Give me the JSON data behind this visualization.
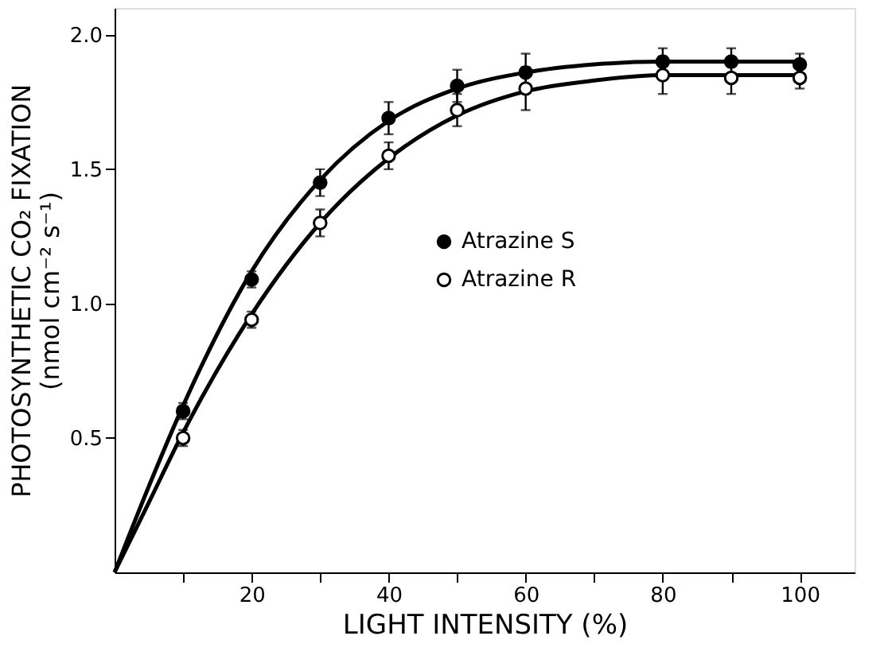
{
  "chart_data": {
    "type": "scatter",
    "xlabel": "LIGHT INTENSITY (%)",
    "ylabel": "PHOTOSYNTHETIC CO₂ FIXATION\n(nmol cm⁻² s⁻¹)",
    "x": [
      10,
      20,
      30,
      40,
      50,
      60,
      80,
      90,
      100
    ],
    "series": [
      {
        "name": "Atrazine S",
        "color": "#000000",
        "marker": "circle",
        "values": [
          0.6,
          1.09,
          1.45,
          1.69,
          1.81,
          1.86,
          1.9,
          1.9,
          1.89
        ],
        "errors": [
          0.03,
          0.03,
          0.05,
          0.06,
          0.06,
          0.07,
          0.05,
          0.05,
          0.04
        ]
      },
      {
        "name": "Atrazine R",
        "color": "#ffffff",
        "marker": "circle",
        "values": [
          0.5,
          0.94,
          1.3,
          1.55,
          1.72,
          1.8,
          1.85,
          1.84,
          1.84
        ],
        "errors": [
          0.03,
          0.03,
          0.05,
          0.05,
          0.06,
          0.08,
          0.07,
          0.06,
          0.04
        ]
      },
      {
        "type": "line",
        "marker": "none",
        "color": "#000000",
        "x": [
          0,
          5,
          10,
          20,
          30,
          40,
          50,
          60,
          70,
          80,
          90,
          100
        ],
        "values": [
          0,
          0.32,
          0.62,
          1.12,
          1.46,
          1.68,
          1.8,
          1.86,
          1.89,
          1.9,
          1.9,
          1.9
        ]
      },
      {
        "type": "line",
        "marker": "none",
        "color": "#000000",
        "x": [
          0,
          5,
          10,
          20,
          30,
          40,
          50,
          60,
          70,
          80,
          90,
          100
        ],
        "values": [
          0,
          0.26,
          0.52,
          0.96,
          1.3,
          1.54,
          1.7,
          1.79,
          1.83,
          1.85,
          1.85,
          1.85
        ]
      }
    ],
    "xlim": [
      0,
      108
    ],
    "xticks": [
      {
        "value": 10,
        "label": null
      },
      20,
      {
        "value": 30,
        "label": null
      },
      40,
      {
        "value": 50,
        "label": null
      },
      60,
      {
        "value": 70,
        "label": null
      },
      80,
      {
        "value": 90,
        "label": null
      },
      100
    ],
    "ylim": [
      0,
      2.1
    ],
    "yticks": [
      0.5,
      {
        "value": 1,
        "label": "1.0"
      },
      1.5,
      {
        "value": 2,
        "label": "2.0"
      }
    ],
    "line_style": "solid",
    "legend": "right",
    "grid": false
  }
}
